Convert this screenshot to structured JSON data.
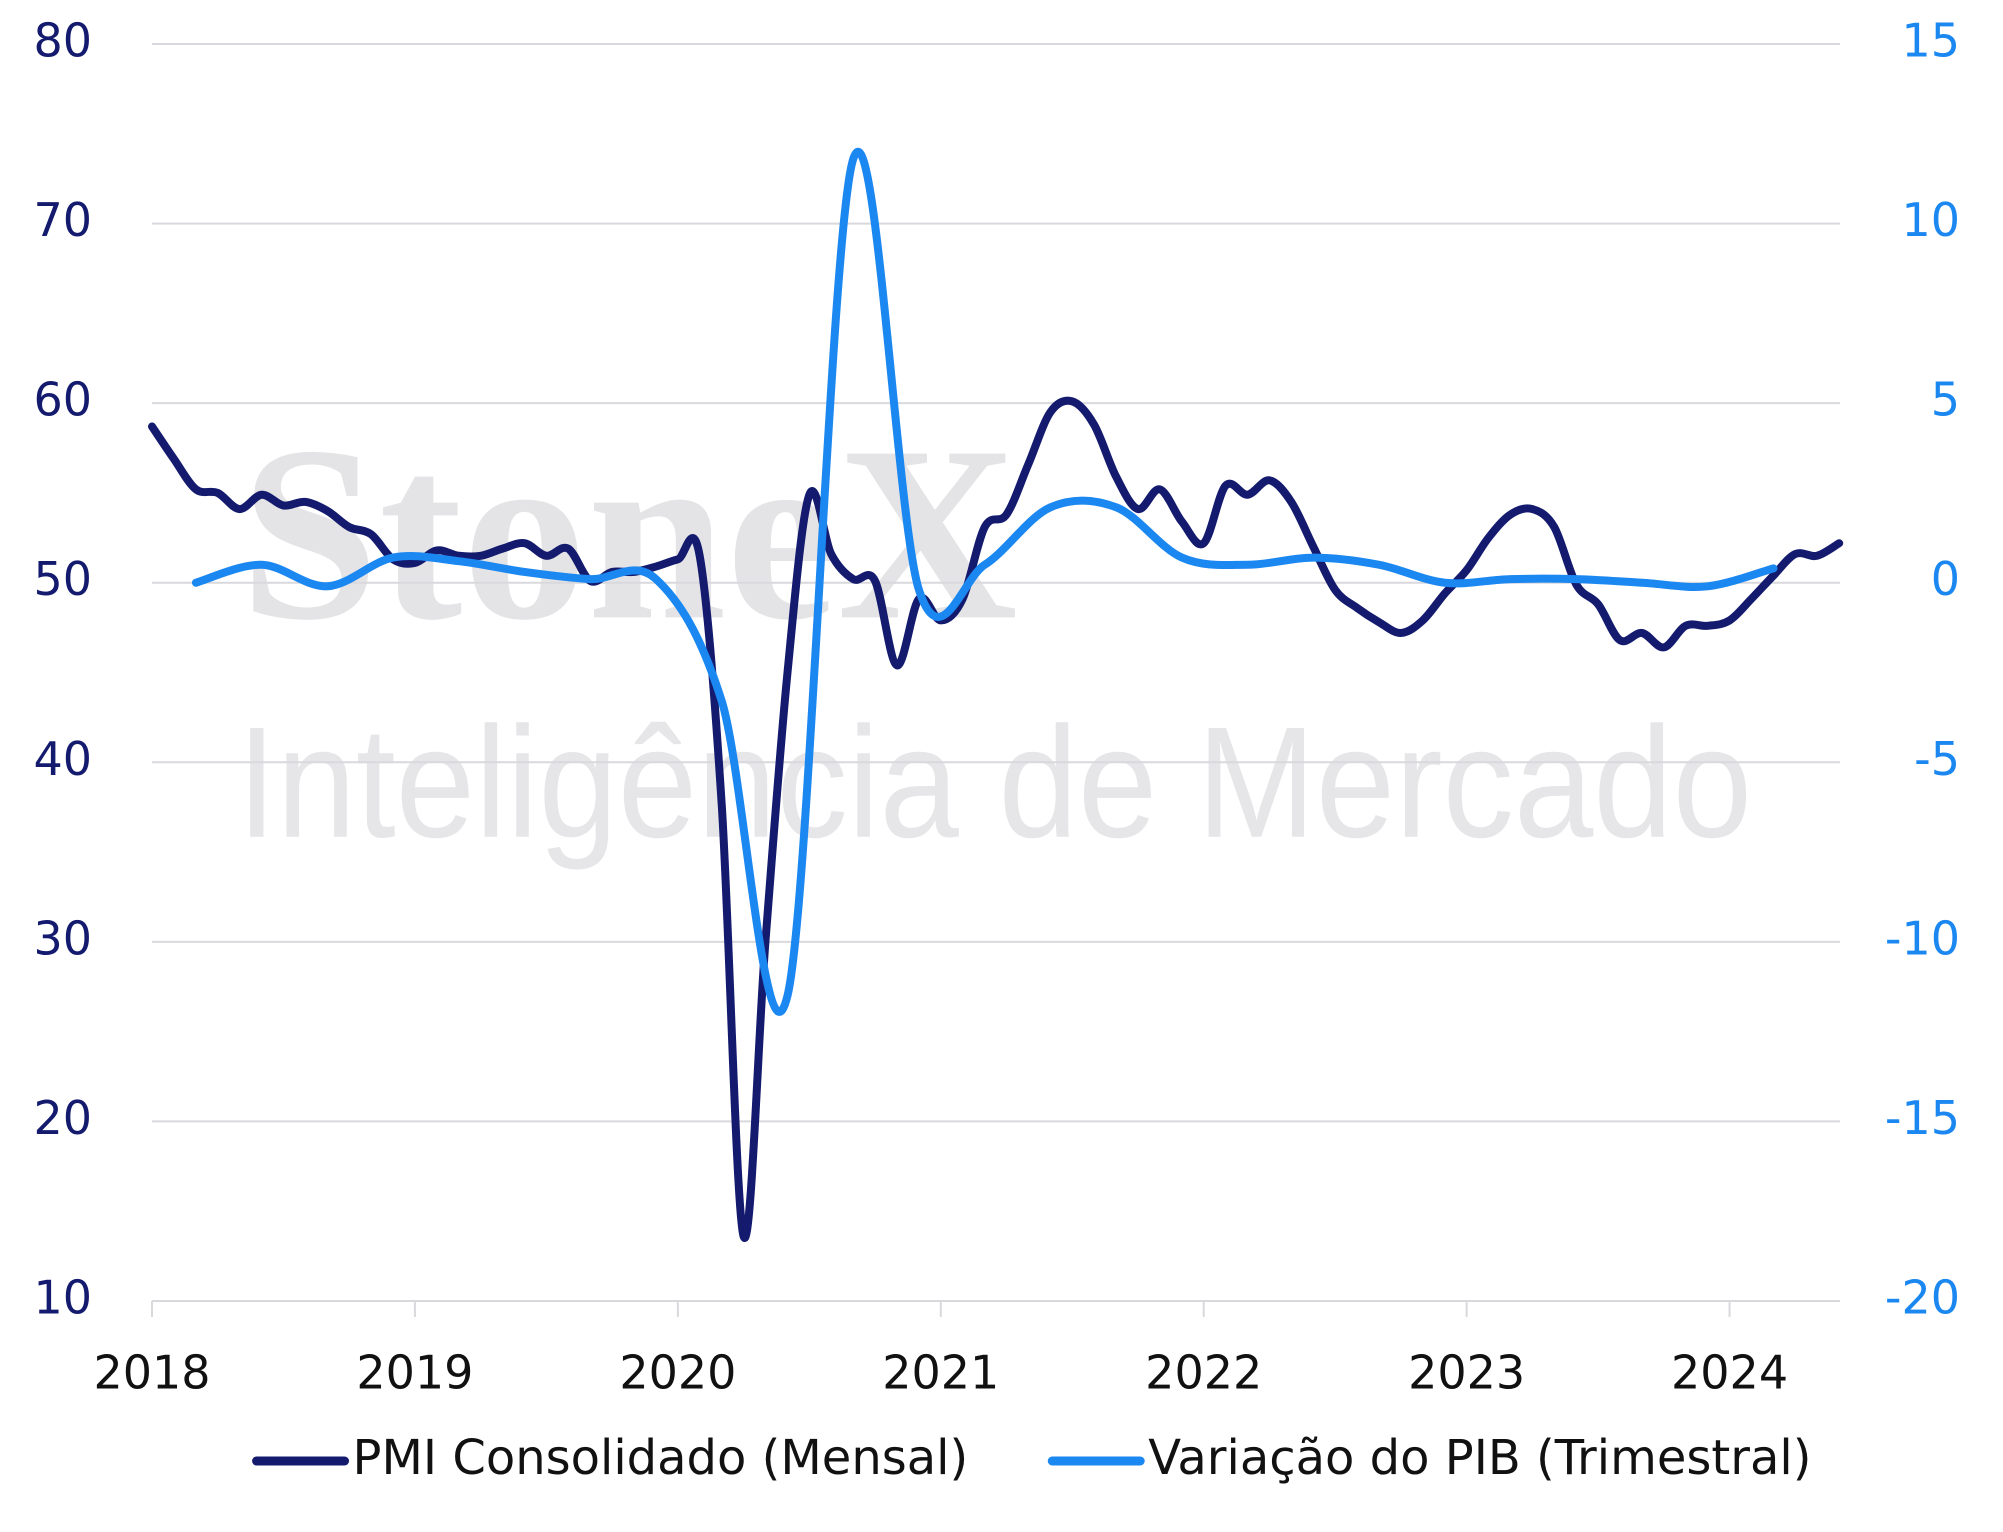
{
  "chart_data": {
    "type": "line",
    "watermark": [
      "StoneX",
      "Inteligência de Mercado"
    ],
    "xlim": [
      2018,
      2024.42
    ],
    "xticks": [
      2018,
      2019,
      2020,
      2021,
      2022,
      2023,
      2024
    ],
    "ylim": [
      10,
      80
    ],
    "yticks": [
      10,
      20,
      30,
      40,
      50,
      60,
      70,
      80
    ],
    "y2lim": [
      -20,
      15
    ],
    "y2ticks": [
      -20,
      -15,
      -10,
      -5,
      0,
      5,
      10,
      15
    ],
    "grid": true,
    "legend": "bottom",
    "series": [
      {
        "name": "PMI Consolidado (Mensal)",
        "color": "#141b6e",
        "x": [
          2018,
          2018.083,
          2018.167,
          2018.25,
          2018.333,
          2018.417,
          2018.5,
          2018.583,
          2018.667,
          2018.75,
          2018.833,
          2018.917,
          2019,
          2019.083,
          2019.167,
          2019.25,
          2019.333,
          2019.417,
          2019.5,
          2019.583,
          2019.667,
          2019.75,
          2019.833,
          2019.917,
          2020,
          2020.083,
          2020.167,
          2020.25,
          2020.333,
          2020.417,
          2020.5,
          2020.583,
          2020.667,
          2020.75,
          2020.833,
          2020.917,
          2021,
          2021.083,
          2021.167,
          2021.25,
          2021.333,
          2021.417,
          2021.5,
          2021.583,
          2021.667,
          2021.75,
          2021.833,
          2021.917,
          2022,
          2022.083,
          2022.167,
          2022.25,
          2022.333,
          2022.417,
          2022.5,
          2022.583,
          2022.667,
          2022.75,
          2022.833,
          2022.917,
          2023,
          2023.083,
          2023.167,
          2023.25,
          2023.333,
          2023.417,
          2023.5,
          2023.583,
          2023.667,
          2023.75,
          2023.833,
          2023.917,
          2024,
          2024.083,
          2024.167,
          2024.25,
          2024.333,
          2024.417
        ],
        "values": [
          58.7,
          56.9,
          55.2,
          55.0,
          54.1,
          54.9,
          54.3,
          54.5,
          54.0,
          53.1,
          52.7,
          51.3,
          51.1,
          51.8,
          51.5,
          51.5,
          51.9,
          52.2,
          51.5,
          51.9,
          50.1,
          50.6,
          50.6,
          50.9,
          51.3,
          51.5,
          37.6,
          13.6,
          30.0,
          45.0,
          54.9,
          51.6,
          50.2,
          50.1,
          45.4,
          49.1,
          47.9,
          49.1,
          53.1,
          53.8,
          56.6,
          59.5,
          60.1,
          58.8,
          55.9,
          54.1,
          55.2,
          53.4,
          52.2,
          55.4,
          54.9,
          55.7,
          54.5,
          52.0,
          49.6,
          48.6,
          47.8,
          47.2,
          47.9,
          49.4,
          50.7,
          52.5,
          53.8,
          54.1,
          53.1,
          49.9,
          48.8,
          46.8,
          47.2,
          46.4,
          47.6,
          47.6,
          47.9,
          49.1,
          50.4,
          51.6,
          51.5,
          52.2
        ]
      },
      {
        "name": "Variação do PIB (Trimestral)",
        "color": "#1b87f0",
        "axis": "y2",
        "x": [
          2018.167,
          2018.417,
          2018.667,
          2018.917,
          2019.167,
          2019.417,
          2019.667,
          2019.917,
          2020.167,
          2020.417,
          2020.667,
          2020.917,
          2021.167,
          2021.417,
          2021.667,
          2021.917,
          2022.167,
          2022.417,
          2022.667,
          2022.917,
          2023.167,
          2023.417,
          2023.667,
          2023.917,
          2024.167
        ],
        "values": [
          0.0,
          0.5,
          -0.1,
          0.7,
          0.6,
          0.3,
          0.1,
          0.1,
          -3.3,
          -11.5,
          11.8,
          -0.2,
          0.5,
          2.1,
          2.1,
          0.7,
          0.5,
          0.7,
          0.5,
          0.0,
          0.1,
          0.1,
          0.0,
          -0.1,
          0.4
        ]
      }
    ]
  }
}
